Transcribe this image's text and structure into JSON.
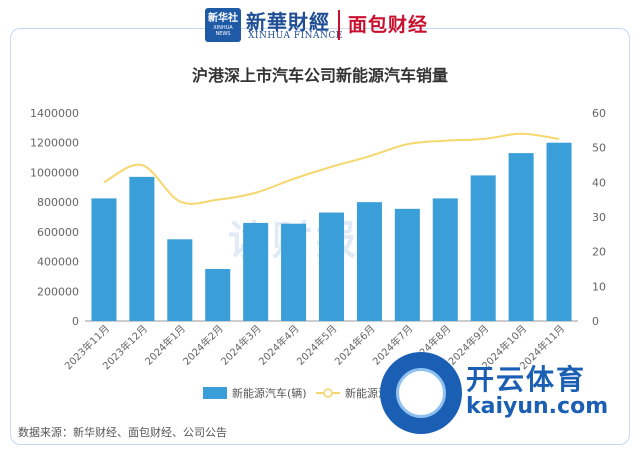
{
  "header": {
    "logo_line1": "新华社",
    "logo_line2": "XINHUA NEWS",
    "brand_cn": "新華財經",
    "brand_en": "XINHUA FINANCE",
    "brand2": "面包财经"
  },
  "source_note": "数据来源：新华财经、面包财经、公司公告",
  "watermarks": {
    "center": "读财报",
    "badge_cn": "开云体育",
    "badge_en": "kaiyun.com"
  },
  "colors": {
    "bar": "#3a9ed8",
    "line": "#f5d76e"
  },
  "chart_data": {
    "type": "bar",
    "title": "沪港深上市汽车公司新能源汽车销量",
    "categories": [
      "2023年11月",
      "2023年12月",
      "2024年1月",
      "2024年2月",
      "2024年3月",
      "2024年4月",
      "2024年5月",
      "2024年6月",
      "2024年7月",
      "2024年8月",
      "2024年9月",
      "2024年10月",
      "2024年11月"
    ],
    "series": [
      {
        "name": "新能源汽车(辆)",
        "type": "bar",
        "axis": "left",
        "values": [
          825000,
          970000,
          550000,
          350000,
          660000,
          655000,
          730000,
          800000,
          755000,
          825000,
          980000,
          1130000,
          1200000
        ]
      },
      {
        "name": "新能源汽车渗透率(%)",
        "type": "line",
        "axis": "right",
        "values": [
          40,
          45,
          34.5,
          35,
          37,
          41,
          44.5,
          47.5,
          51,
          52,
          52.5,
          54,
          52.5
        ]
      }
    ],
    "y_left": {
      "min": 0,
      "max": 1400000,
      "ticks": [
        "0",
        "200000",
        "400000",
        "600000",
        "800000",
        "1000000",
        "1200000",
        "1400000"
      ]
    },
    "y_right": {
      "min": 0,
      "max": 60,
      "ticks": [
        "0",
        "10",
        "20",
        "30",
        "40",
        "50",
        "60"
      ]
    },
    "grid": false,
    "legend_position": "bottom"
  }
}
